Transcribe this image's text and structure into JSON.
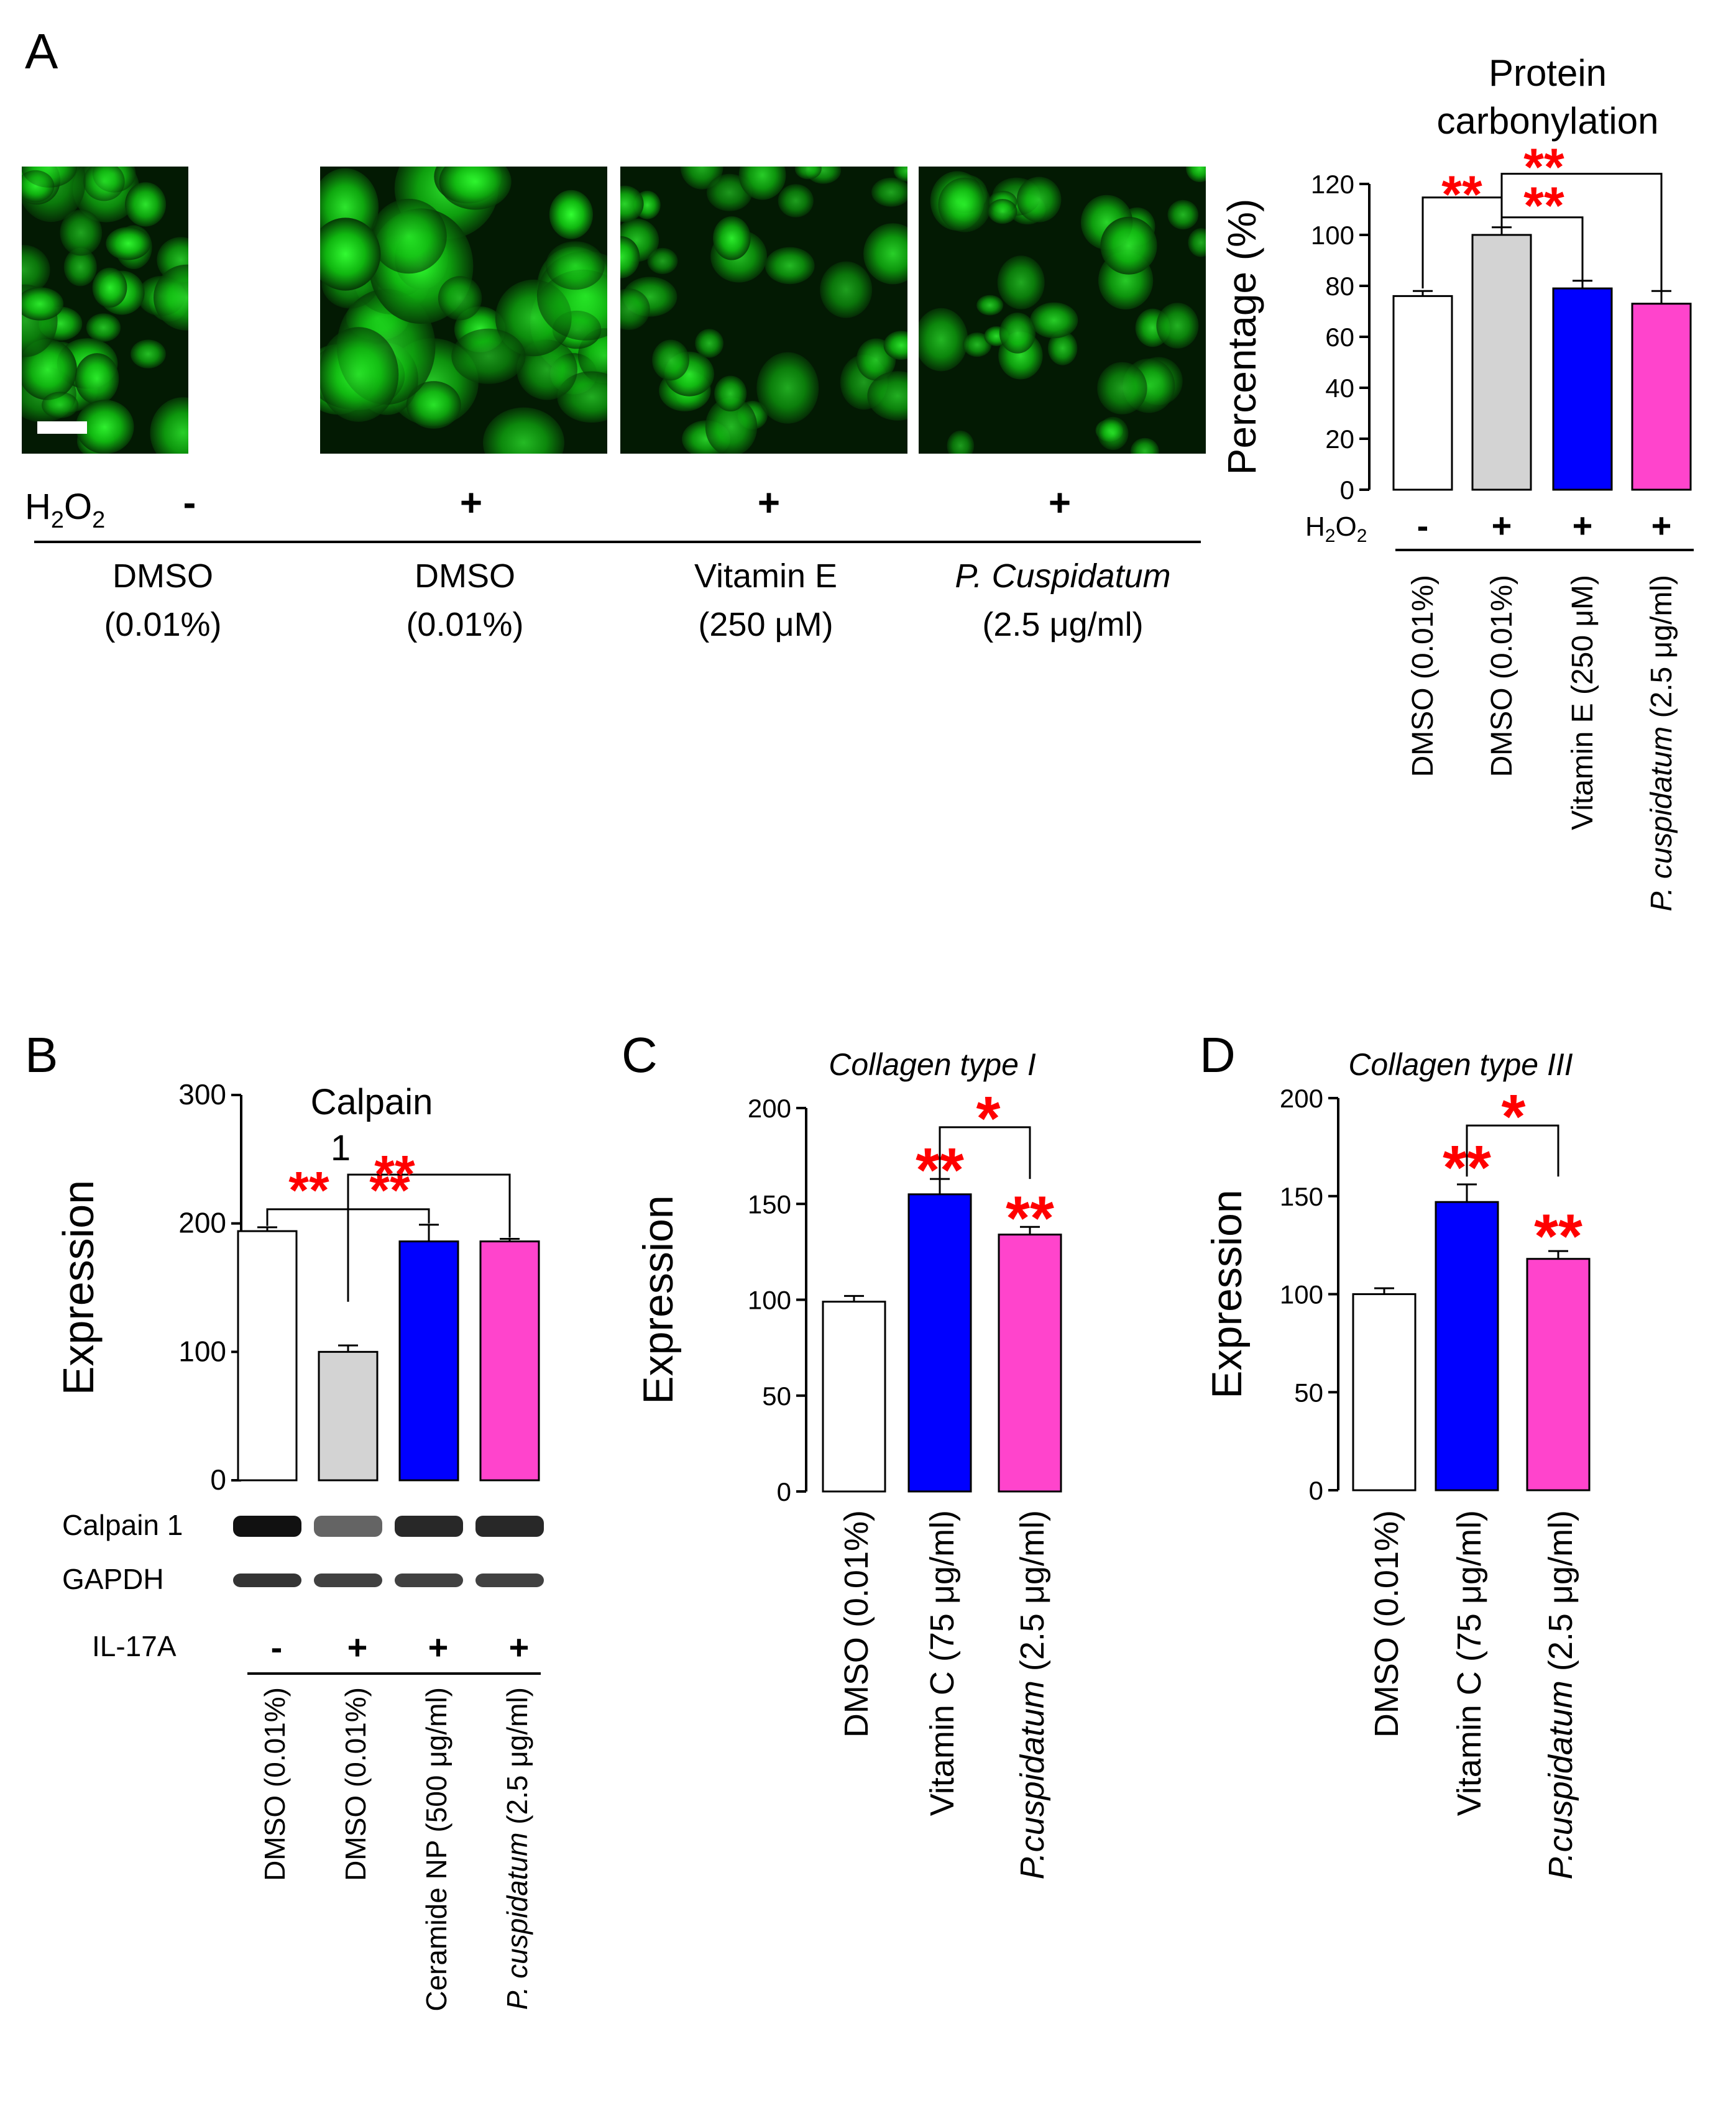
{
  "figure": {
    "panel_labels": [
      "A",
      "B",
      "C",
      "D"
    ]
  },
  "panel_a": {
    "h2o2_label": "H",
    "h2o2_sub_2a": "2",
    "h2o2_o": "O",
    "h2o2_sub_2b": "2",
    "image_conditions": [
      {
        "h2o2": "-",
        "line1": "DMSO",
        "line2": "(0.01%)",
        "italic": false
      },
      {
        "h2o2": "+",
        "line1": "DMSO",
        "line2": "(0.01%)",
        "italic": false
      },
      {
        "h2o2": "+",
        "line1": "Vitamin E",
        "line2": "(250 μM)",
        "italic": false
      },
      {
        "h2o2": "+",
        "line1": "P. Cuspidatum",
        "line2": "(2.5 μg/ml)",
        "italic": true
      }
    ],
    "image_descriptions": [
      "green fluorescence micrograph",
      "green fluorescence micrograph",
      "green fluorescence micrograph",
      "green fluorescence micrograph"
    ]
  },
  "chart_data": [
    {
      "id": "A",
      "type": "bar",
      "title": "Protein carbonylation",
      "title_line1": "Protein",
      "title_line2": "carbonylation",
      "ylabel": "Percentage (%)",
      "xlabel": "",
      "ylim": [
        0,
        120
      ],
      "yticks": [
        0,
        20,
        40,
        60,
        80,
        100,
        120
      ],
      "treatment_label": "H2O2",
      "treatment_signs": [
        "-",
        "+",
        "+",
        "+"
      ],
      "categories": [
        "DMSO (0.01%)",
        "DMSO (0.01%)",
        "Vitamin E (250 μM)",
        "P. cuspidatum (2.5 μg/ml)"
      ],
      "category_italic_prefix": [
        "",
        "",
        "",
        "P. cuspidatum"
      ],
      "values": [
        76,
        100,
        79,
        73
      ],
      "errors": [
        2,
        3,
        3,
        5
      ],
      "colors": [
        "#ffffff",
        "#d3d3d3",
        "#0000ff",
        "#ff44cc"
      ],
      "annotations": [
        "**",
        "**",
        "**"
      ],
      "grid": false
    },
    {
      "id": "B",
      "type": "bar",
      "title": "Calpain 1",
      "title_line1": "Calpain",
      "title_line2": "1",
      "ylabel": "Expression",
      "xlabel": "",
      "ylim": [
        0,
        300
      ],
      "yticks": [
        0,
        100,
        200,
        300
      ],
      "treatment_label": "IL-17A",
      "treatment_signs": [
        "-",
        "+",
        "+",
        "+"
      ],
      "blot_labels": [
        "Calpain 1",
        "GAPDH"
      ],
      "categories": [
        "DMSO (0.01%)",
        "DMSO (0.01%)",
        "Ceramide NP (500 μg/ml)",
        "P. cuspidatum (2.5 μg/ml)"
      ],
      "values": [
        194,
        100,
        186,
        186
      ],
      "errors": [
        3,
        5,
        13,
        2
      ],
      "colors": [
        "#ffffff",
        "#d3d3d3",
        "#0000ff",
        "#ff44cc"
      ],
      "annotations": [
        "**",
        "**",
        "**"
      ],
      "grid": false
    },
    {
      "id": "C",
      "type": "bar",
      "title": "Collagen type I",
      "ylabel": "Expression",
      "xlabel": "",
      "ylim": [
        0,
        200
      ],
      "yticks": [
        0,
        50,
        100,
        150,
        200
      ],
      "categories": [
        "DMSO (0.01%)",
        "Vitamin C (75 μg/ml)",
        "P.cuspidatum (2.5 μg/ml)"
      ],
      "values": [
        99,
        155,
        134
      ],
      "errors": [
        3,
        8,
        4
      ],
      "colors": [
        "#ffffff",
        "#0000ff",
        "#ff44cc"
      ],
      "annotations": [
        "**",
        "**",
        "*"
      ],
      "grid": false
    },
    {
      "id": "D",
      "type": "bar",
      "title": "Collagen type III",
      "ylabel": "Expression",
      "xlabel": "",
      "ylim": [
        0,
        200
      ],
      "yticks": [
        0,
        50,
        100,
        150,
        200
      ],
      "categories": [
        "DMSO (0.01%)",
        "Vitamin C (75 μg/ml)",
        "P.cuspidatum (2.5 μg/ml)"
      ],
      "values": [
        100,
        147,
        118
      ],
      "errors": [
        3,
        9,
        4
      ],
      "colors": [
        "#ffffff",
        "#0000ff",
        "#ff44cc"
      ],
      "annotations": [
        "**",
        "**",
        "*"
      ],
      "grid": false
    }
  ]
}
